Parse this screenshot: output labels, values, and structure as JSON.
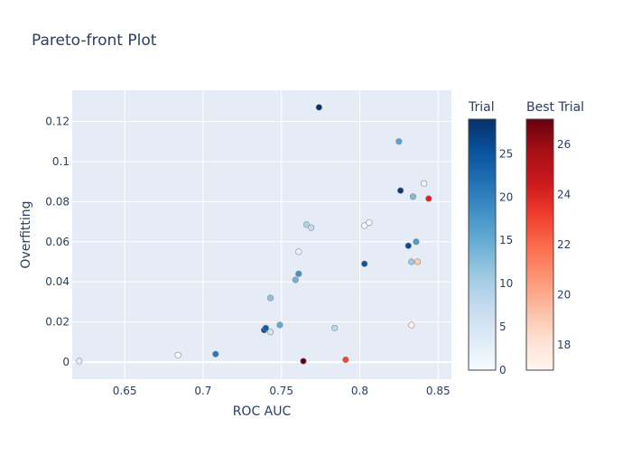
{
  "chart_data": {
    "type": "scatter",
    "title": "Pareto-front Plot",
    "xlabel": "ROC AUC",
    "ylabel": "Overfitting",
    "xlim": [
      0.6165,
      0.8585
    ],
    "ylim": [
      -0.0085,
      0.1355
    ],
    "xticks": [
      0.65,
      0.7,
      0.75,
      0.8,
      0.85
    ],
    "xtick_labels": [
      "0.65",
      "0.7",
      "0.75",
      "0.8",
      "0.85"
    ],
    "yticks": [
      0,
      0.02,
      0.04,
      0.06,
      0.08,
      0.1,
      0.12
    ],
    "ytick_labels": [
      "0",
      "0.02",
      "0.04",
      "0.06",
      "0.08",
      "0.1",
      "0.12"
    ],
    "grid": true,
    "colors": {
      "plot_background": "#e5ecf6",
      "grid": "#ffffff",
      "text": "#2a3f5f"
    },
    "colorbars": [
      {
        "name": "Trial",
        "scale": "Blues",
        "range": [
          0,
          29
        ],
        "ticks": [
          0,
          5,
          10,
          15,
          20,
          25
        ],
        "tick_labels": [
          "0",
          "5",
          "10",
          "15",
          "20",
          "25"
        ]
      },
      {
        "name": "Best Trial",
        "scale": "Reds",
        "range": [
          17,
          27
        ],
        "ticks": [
          18,
          20,
          22,
          24,
          26
        ],
        "tick_labels": [
          "18",
          "20",
          "22",
          "24",
          "26"
        ]
      }
    ],
    "series": [
      {
        "group": "Trial",
        "points": [
          {
            "x": 0.621,
            "y": 0.0005,
            "c": 3
          },
          {
            "x": 0.684,
            "y": 0.0035,
            "c": 0
          },
          {
            "x": 0.708,
            "y": 0.004,
            "c": 21
          },
          {
            "x": 0.739,
            "y": 0.016,
            "c": 27
          },
          {
            "x": 0.74,
            "y": 0.017,
            "c": 24
          },
          {
            "x": 0.743,
            "y": 0.015,
            "c": 5
          },
          {
            "x": 0.743,
            "y": 0.032,
            "c": 12
          },
          {
            "x": 0.749,
            "y": 0.0185,
            "c": 15
          },
          {
            "x": 0.759,
            "y": 0.041,
            "c": 14
          },
          {
            "x": 0.761,
            "y": 0.044,
            "c": 18
          },
          {
            "x": 0.761,
            "y": 0.055,
            "c": 2
          },
          {
            "x": 0.766,
            "y": 0.0685,
            "c": 9
          },
          {
            "x": 0.769,
            "y": 0.067,
            "c": 7
          },
          {
            "x": 0.774,
            "y": 0.127,
            "c": 29
          },
          {
            "x": 0.784,
            "y": 0.017,
            "c": 8
          },
          {
            "x": 0.803,
            "y": 0.068,
            "c": 1
          },
          {
            "x": 0.803,
            "y": 0.049,
            "c": 25
          },
          {
            "x": 0.806,
            "y": 0.0695,
            "c": 1
          },
          {
            "x": 0.825,
            "y": 0.11,
            "c": 16
          },
          {
            "x": 0.826,
            "y": 0.0855,
            "c": 28
          },
          {
            "x": 0.831,
            "y": 0.058,
            "c": 26
          },
          {
            "x": 0.833,
            "y": 0.05,
            "c": 11
          },
          {
            "x": 0.834,
            "y": 0.0825,
            "c": 13
          },
          {
            "x": 0.836,
            "y": 0.06,
            "c": 17
          },
          {
            "x": 0.841,
            "y": 0.089,
            "c": 1
          }
        ]
      },
      {
        "group": "Best Trial",
        "points": [
          {
            "x": 0.764,
            "y": 0.0005,
            "c": 27
          },
          {
            "x": 0.791,
            "y": 0.0012,
            "c": 23
          },
          {
            "x": 0.833,
            "y": 0.0185,
            "c": 17
          },
          {
            "x": 0.837,
            "y": 0.05,
            "c": 19
          },
          {
            "x": 0.844,
            "y": 0.0815,
            "c": 24
          }
        ]
      }
    ]
  }
}
